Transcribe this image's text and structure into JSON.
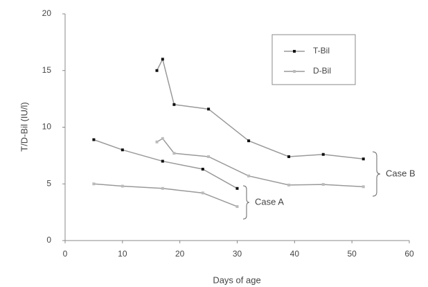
{
  "chart_data": {
    "type": "line",
    "xlabel": "Days of age",
    "ylabel": "T/D-Bil (IU/l)",
    "xlim": [
      0,
      60
    ],
    "xticks": [
      0,
      10,
      20,
      30,
      40,
      50,
      60
    ],
    "ylim": [
      0,
      20
    ],
    "yticks": [
      0,
      5,
      10,
      15,
      20
    ],
    "legend": "upper right",
    "series": [
      {
        "name": "T-Bil",
        "color": "#999999",
        "marker_color": "#111111",
        "x": [
          5,
          10,
          17,
          24,
          30,
          null,
          16,
          17,
          19,
          25,
          32,
          39,
          45,
          52
        ],
        "values": [
          8.9,
          8.0,
          7.0,
          6.3,
          4.6,
          null,
          15.0,
          16.0,
          12.0,
          11.6,
          8.8,
          7.4,
          7.6,
          7.2
        ]
      },
      {
        "name": "D-Bil",
        "color": "#999999",
        "marker_color": "#bbbbbb",
        "x": [
          5,
          10,
          17,
          24,
          30,
          null,
          16,
          17,
          19,
          25,
          32,
          39,
          45,
          52
        ],
        "values": [
          5.0,
          4.8,
          4.6,
          4.2,
          3.0,
          null,
          8.7,
          9.0,
          7.7,
          7.4,
          5.7,
          4.9,
          4.95,
          4.75
        ]
      }
    ],
    "annotations": [
      "Case A",
      "Case B"
    ]
  }
}
